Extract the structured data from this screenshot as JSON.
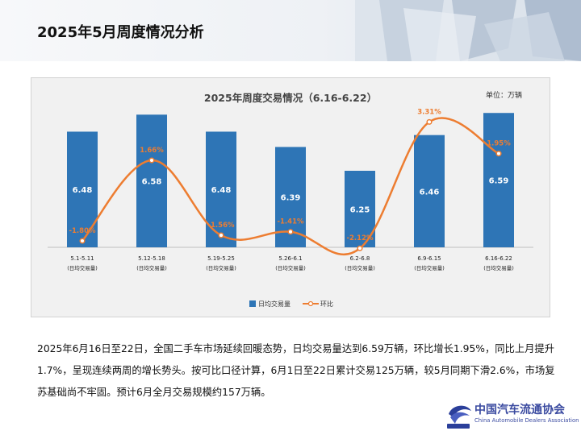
{
  "header": {
    "title": "2025年5月周度情况分析"
  },
  "chart_data": {
    "type": "bar+line",
    "title": "2025年周度交易情况（6.16-6.22）",
    "unit_label": "单位：万辆",
    "categories": [
      "5.1-5.11",
      "5.12-5.18",
      "5.19-5.25",
      "5.26-6.1",
      "6.2-6.8",
      "6.9-6.15",
      "6.16-6.22"
    ],
    "category_sublabel": "(日均交易量)",
    "series": [
      {
        "name": "日均交易量",
        "type": "bar",
        "color": "#2e75b6",
        "values": [
          6.48,
          6.58,
          6.48,
          6.39,
          6.25,
          6.46,
          6.59
        ],
        "labels": [
          "6.48",
          "6.58",
          "6.48",
          "6.39",
          "6.25",
          "6.46",
          "6.59"
        ]
      },
      {
        "name": "环比",
        "type": "line",
        "color": "#ed7d31",
        "values": [
          -1.8,
          1.66,
          -1.56,
          -1.41,
          -2.12,
          3.31,
          1.95
        ],
        "labels": [
          "-1.80%",
          "1.66%",
          "-1.56%",
          "-1.41%",
          "-2.12%",
          "3.31%",
          "1.95%"
        ]
      }
    ],
    "bar_axis": [
      5.8,
      6.7
    ],
    "line_axis": [
      -4.5,
      4.5
    ],
    "legend": [
      "日均交易量",
      "环比"
    ]
  },
  "description": "2025年6月16日至22日，全国二手车市场延续回暖态势，日均交易量达到6.59万辆，环比增长1.95%，同比上月提升1.7%，呈现连续两周的增长势头。按可比口径计算，6月1日至22日累计交易125万辆，较5月同期下滑2.6%，市场复苏基础尚不牢固。预计6月全月交易规模约157万辆。",
  "logo": {
    "cn": "中国汽车流通协会",
    "en": "China Automobile Dealers Association"
  },
  "colors": {
    "bar": "#2e75b6",
    "line": "#ed7d31"
  }
}
